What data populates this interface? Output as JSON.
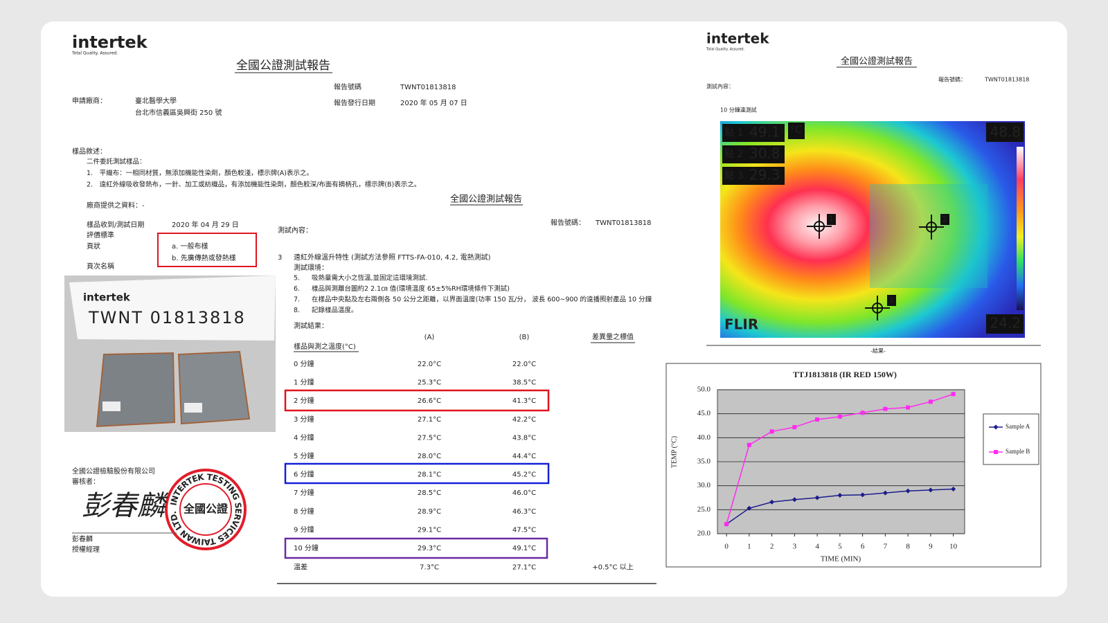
{
  "left_page": {
    "logo": "intertek",
    "logo_tagline": "Total Quality. Assured.",
    "title": "全國公證測試報告",
    "report_no_label": "報告號碼",
    "report_no": "TWNT01813818",
    "issue_date_label": "報告發行日期",
    "issue_date": "2020 年 05 月 07 日",
    "applicant_label": "申請廠商：",
    "applicant_name": "臺北醫學大學",
    "applicant_address": "台北市信義區吳興街 250 號",
    "sample_desc_label": "樣品敘述：",
    "sample_lines": [
      "二件委託測試樣品：",
      "1.　平織布：一相同材質，無添加機能性染劑，顏色較淺，標示牌(A)表示之。",
      "2.　遠紅外線吸收發熱布，一針、加工或紡織品，有添加機能性染劑，顏色較深/布面有摘柄孔，標示牌(B)表示之。"
    ],
    "vendor_info": "廠商提供之資料：-",
    "received_label": "樣品收到/測試日期",
    "received_date": "2020 年 04 月 29 日",
    "criteria_label": "評價標準",
    "grade_label": "頁狀",
    "grade_options": [
      "a. 一般布樣",
      "b. 先廣傳熱或發熱樣"
    ],
    "grade_name_label": "頁次名稱",
    "photo_logo": "intertek",
    "photo_code": "TWNT 01813818",
    "company": "全國公證檢驗股份有限公司",
    "reviewer_label": "審核者：",
    "signature": "彭春麟",
    "signer": "彭春麟",
    "signer_title": "授權經理",
    "stamp_center": "全國公證",
    "stamp_ring": "INTERTEK TESTING SERVICES TAIWAN LTD."
  },
  "middle_page": {
    "title": "全國公證測試報告",
    "report_no_label": "報告號碼：",
    "report_no": "TWNT01813818",
    "content_label": "測試內容：",
    "item_no": "3",
    "item_title": "遠紅外線溫升特性 (測試方法參照 FTTS-FA-010, 4.2, 電熱測試)",
    "env_label": "測試環境：",
    "steps": [
      [
        "5.",
        "吸熱量需大小之恆溫,並固定這環境測試."
      ],
      [
        "6.",
        "樣品與測離台圖約2 2.1㎝ 值(環境溫度 65±5%RH環境條件下測試)"
      ],
      [
        "7.",
        "在樣品中央點及左右兩側各 50 公分之距離，以界面溫度(功率 150 瓦/分， 波長 600~900 的遠播照射產品 10 分鐘"
      ],
      [
        "8.",
        "記錄樣品溫度。"
      ]
    ],
    "results_label": "測試結果：",
    "table": {
      "header": [
        "樣品與測之溫度(°C)",
        "(A)",
        "(B)",
        "差異量之標值"
      ],
      "rows": [
        [
          "0 分鐘",
          "22.0°C",
          "22.0°C"
        ],
        [
          "1 分鐘",
          "25.3°C",
          "38.5°C"
        ],
        [
          "2 分鐘",
          "26.6°C",
          "41.3°C"
        ],
        [
          "3 分鐘",
          "27.1°C",
          "42.2°C"
        ],
        [
          "4 分鐘",
          "27.5°C",
          "43.8°C"
        ],
        [
          "5 分鐘",
          "28.0°C",
          "44.4°C"
        ],
        [
          "6 分鐘",
          "28.1°C",
          "45.2°C"
        ],
        [
          "7 分鐘",
          "28.5°C",
          "46.0°C"
        ],
        [
          "8 分鐘",
          "28.9°C",
          "46.3°C"
        ],
        [
          "9 分鐘",
          "29.1°C",
          "47.5°C"
        ],
        [
          "10 分鐘",
          "29.3°C",
          "49.1°C"
        ]
      ],
      "diff_row": [
        "溫差",
        "7.3°C",
        "27.1°C",
        "+0.5°C 以上"
      ]
    }
  },
  "right_page": {
    "logo": "intertek",
    "logo_tagline": "Total Quality. Assured.",
    "title": "全國公證測試報告",
    "report_no_label": "報告號碼：",
    "report_no": "TWNT01813818",
    "content_label": "測試內容：",
    "image_caption": "10 分鐘達測試",
    "thermal": {
      "spots": [
        [
          "點 1",
          "49.1"
        ],
        [
          "點 2",
          "30.8"
        ],
        [
          "點 3",
          "29.3"
        ]
      ],
      "unit": "°C",
      "max": "48.8",
      "min": "24.2",
      "brand": "FLIR",
      "markers": [
        "1",
        "2",
        "3"
      ]
    },
    "result_caption": "-結果-"
  },
  "chart_data": {
    "type": "line",
    "title": "TTJ1813818 (IR RED 150W)",
    "x_label": "TIME (MIN)",
    "y_label": "TEMP (°C)",
    "x": [
      0,
      1,
      2,
      3,
      4,
      5,
      6,
      7,
      8,
      9,
      10
    ],
    "series": [
      {
        "name": "Sample A",
        "color": "#1c1c8c",
        "marker": "diamond",
        "values": [
          22.0,
          25.3,
          26.6,
          27.1,
          27.5,
          28.0,
          28.1,
          28.5,
          28.9,
          29.1,
          29.3
        ]
      },
      {
        "name": "Sample B",
        "color": "#ff2bf0",
        "marker": "square",
        "values": [
          22.0,
          38.5,
          41.3,
          42.2,
          43.8,
          44.4,
          45.2,
          46.0,
          46.3,
          47.5,
          49.1
        ]
      }
    ],
    "xlim": [
      -0.4,
      10.5
    ],
    "xticks": [
      0,
      1,
      2,
      3,
      4,
      5,
      6,
      7,
      8,
      9,
      10
    ],
    "ylim": [
      20,
      50
    ],
    "yticks": [
      {
        "value": 20,
        "label": "20.0"
      },
      {
        "value": 25,
        "label": "25.0"
      },
      {
        "value": 30,
        "label": "30.0"
      },
      {
        "value": 35,
        "label": "35.0"
      },
      {
        "value": 40,
        "label": "40.0"
      },
      {
        "value": 45,
        "label": "45.0"
      },
      {
        "value": 50,
        "label": "50.0"
      }
    ],
    "grid": true,
    "legend": "right"
  }
}
